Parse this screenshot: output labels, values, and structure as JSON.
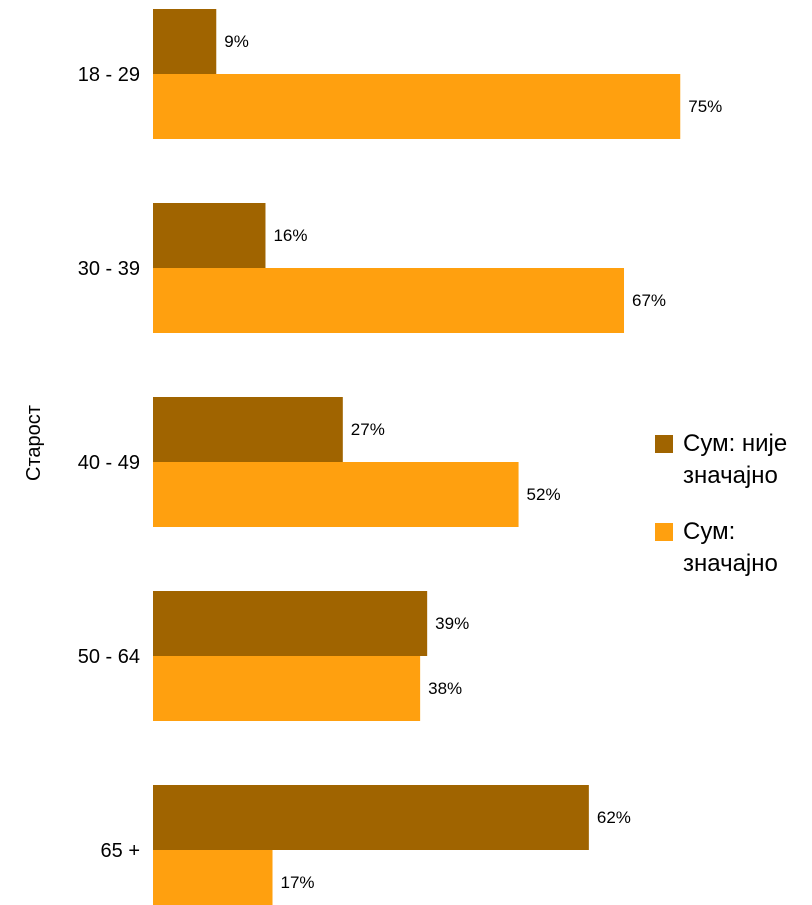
{
  "chart_data": {
    "type": "bar",
    "orientation": "horizontal",
    "ylabel": "Старост",
    "categories": [
      "18 - 29",
      "30 - 39",
      "40 - 49",
      "50 - 64",
      "65 +"
    ],
    "series": [
      {
        "name": "Сум: није значајно",
        "values": [
          9,
          16,
          27,
          39,
          62
        ],
        "labels": [
          "9%",
          "16%",
          "27%",
          "39%",
          "62%"
        ],
        "color": "#a06400"
      },
      {
        "name": "Сум: значајно",
        "values": [
          75,
          67,
          52,
          38,
          17
        ],
        "labels": [
          "75%",
          "67%",
          "52%",
          "38%",
          "17%"
        ],
        "color": "#ffa00f"
      }
    ],
    "xlim": [
      0,
      100
    ],
    "value_format": "percent",
    "grid": false,
    "legend_position": "right"
  }
}
